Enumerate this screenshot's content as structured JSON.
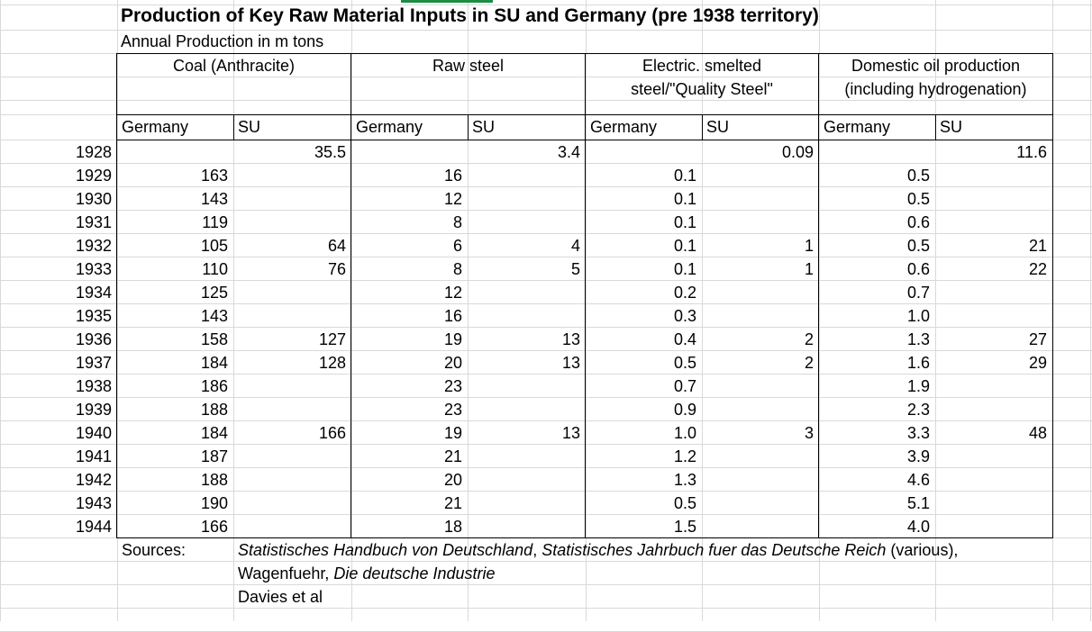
{
  "title": "Production of Key Raw Material Inputs in SU and Germany (pre 1938 territory)",
  "subtitle": "Annual Production in m tons",
  "groups": [
    {
      "line1": "Coal (Anthracite)",
      "line2": ""
    },
    {
      "line1": "Raw steel",
      "line2": ""
    },
    {
      "line1": "Electric. smelted",
      "line2": "steel/\"Quality Steel\""
    },
    {
      "line1": "Domestic oil production",
      "line2": "(including hydrogenation)"
    }
  ],
  "subheaders": [
    "Germany",
    "SU",
    "Germany",
    "SU",
    "Germany",
    "SU",
    "Germany",
    "SU"
  ],
  "rows": [
    {
      "year": "1928",
      "v": [
        "",
        "35.5",
        "",
        "3.4",
        "",
        "0.09",
        "",
        "11.6"
      ]
    },
    {
      "year": "1929",
      "v": [
        "163",
        "",
        "16",
        "",
        "0.1",
        "",
        "0.5",
        ""
      ]
    },
    {
      "year": "1930",
      "v": [
        "143",
        "",
        "12",
        "",
        "0.1",
        "",
        "0.5",
        ""
      ]
    },
    {
      "year": "1931",
      "v": [
        "119",
        "",
        "8",
        "",
        "0.1",
        "",
        "0.6",
        ""
      ]
    },
    {
      "year": "1932",
      "v": [
        "105",
        "64",
        "6",
        "4",
        "0.1",
        "1",
        "0.5",
        "21"
      ]
    },
    {
      "year": "1933",
      "v": [
        "110",
        "76",
        "8",
        "5",
        "0.1",
        "1",
        "0.6",
        "22"
      ]
    },
    {
      "year": "1934",
      "v": [
        "125",
        "",
        "12",
        "",
        "0.2",
        "",
        "0.7",
        ""
      ]
    },
    {
      "year": "1935",
      "v": [
        "143",
        "",
        "16",
        "",
        "0.3",
        "",
        "1.0",
        ""
      ]
    },
    {
      "year": "1936",
      "v": [
        "158",
        "127",
        "19",
        "13",
        "0.4",
        "2",
        "1.3",
        "27"
      ]
    },
    {
      "year": "1937",
      "v": [
        "184",
        "128",
        "20",
        "13",
        "0.5",
        "2",
        "1.6",
        "29"
      ]
    },
    {
      "year": "1938",
      "v": [
        "186",
        "",
        "23",
        "",
        "0.7",
        "",
        "1.9",
        ""
      ]
    },
    {
      "year": "1939",
      "v": [
        "188",
        "",
        "23",
        "",
        "0.9",
        "",
        "2.3",
        ""
      ]
    },
    {
      "year": "1940",
      "v": [
        "184",
        "166",
        "19",
        "13",
        "1.0",
        "3",
        "3.3",
        "48"
      ]
    },
    {
      "year": "1941",
      "v": [
        "187",
        "",
        "21",
        "",
        "1.2",
        "",
        "3.9",
        ""
      ]
    },
    {
      "year": "1942",
      "v": [
        "188",
        "",
        "20",
        "",
        "1.3",
        "",
        "4.6",
        ""
      ]
    },
    {
      "year": "1943",
      "v": [
        "190",
        "",
        "21",
        "",
        "0.5",
        "",
        "5.1",
        ""
      ]
    },
    {
      "year": "1944",
      "v": [
        "166",
        "",
        "18",
        "",
        "1.5",
        "",
        "4.0",
        ""
      ]
    }
  ],
  "sources": {
    "label": "Sources:",
    "line1_italic_a": "Statistisches Handbuch von Deutschland",
    "line1_sep": ", ",
    "line1_italic_b": "Statistisches Jahrbuch fuer das Deutsche Reich",
    "line1_tail": " (various),",
    "line2_plain": "Wagenfuehr, ",
    "line2_italic": "Die deutsche Industrie",
    "line3": "Davies et al"
  },
  "colors": {
    "gridline": "#d9d9d9",
    "border": "#000000",
    "accent": "#1e8c45"
  }
}
